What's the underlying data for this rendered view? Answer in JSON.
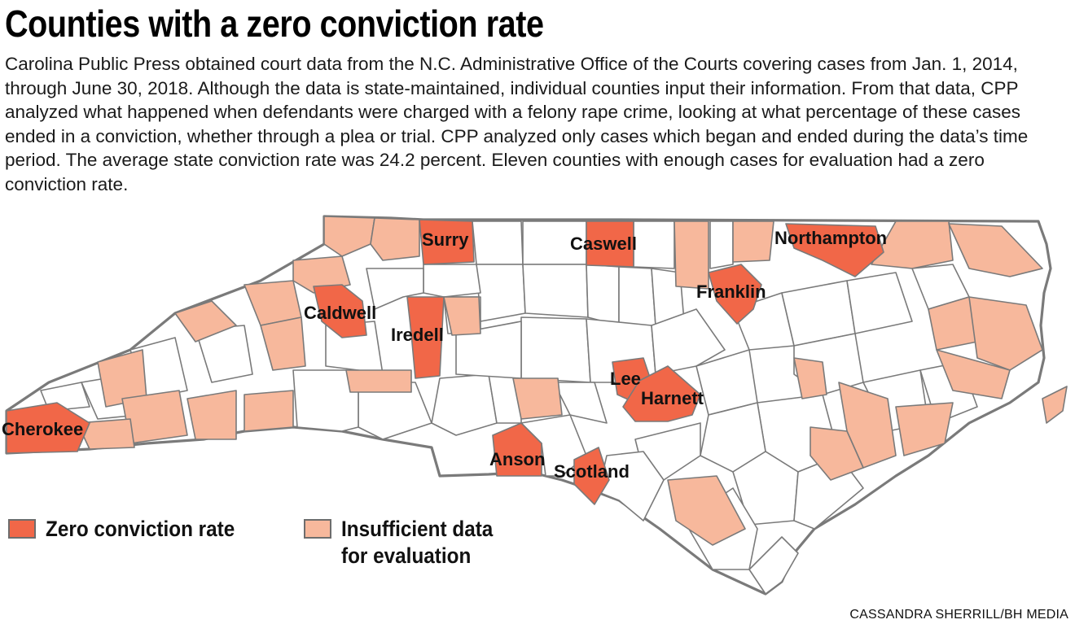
{
  "title": "Counties with a zero conviction rate",
  "intro": "Carolina Public Press obtained court data from the N.C. Administrative Office of the Courts covering cases from Jan. 1, 2014, through June 30, 2018. Although the data is state-maintained, individual counties input their information. From that data, CPP analyzed what happened when defendants were charged with a felony rape crime, looking at what percentage of these cases ended in a conviction, whether through a plea or trial. CPP analyzed only cases which began and ended during the data’s time period. The average state conviction rate was 24.2 percent. Eleven counties with enough cases for evaluation had a zero conviction rate.",
  "colors": {
    "zero": "#f16748",
    "insufficient": "#f7b89c",
    "other": "#ffffff",
    "border": "#7a7a7a"
  },
  "zero_counties": [
    "Surry",
    "Caswell",
    "Northampton",
    "Franklin",
    "Caldwell",
    "Iredell",
    "Lee",
    "Harnett",
    "Cherokee",
    "Anson",
    "Scotland"
  ],
  "legend": {
    "zero": "Zero conviction rate",
    "insufficient": "Insufficient data\nfor evaluation"
  },
  "credit": "CASSANDRA SHERRILL/BH MEDIA"
}
